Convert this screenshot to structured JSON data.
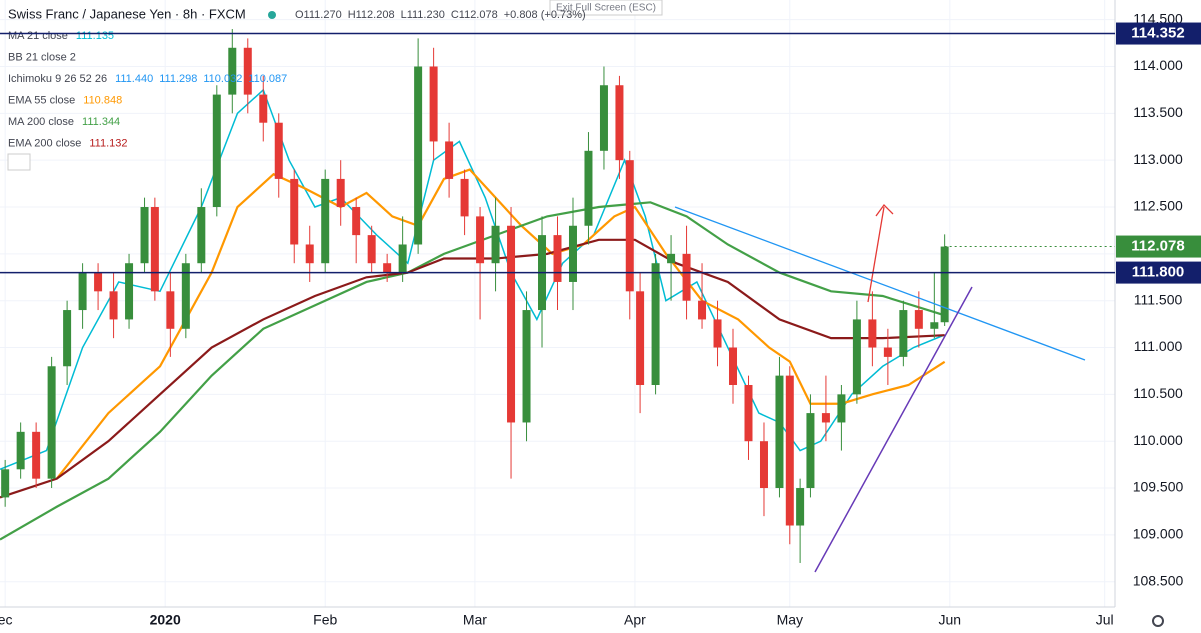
{
  "header": {
    "symbol": "Swiss Franc / Japanese Yen · 8h · FXCM",
    "ohlc": [
      "O111.270",
      "H112.208",
      "L111.230",
      "C112.078",
      "+0.808 (+0.73%)"
    ],
    "exit_fullscreen": "Exit Full Screen (ESC)"
  },
  "indicators": [
    {
      "name": "MA 21 close",
      "values": [
        "111.135"
      ],
      "color": "#00bcd4"
    },
    {
      "name": "BB 21 close 2",
      "values": []
    },
    {
      "name": "Ichimoku 9 26 52 26",
      "values": [
        "111.440",
        "111.298",
        "110.032",
        "110.087"
      ],
      "color": "#2196f3"
    },
    {
      "name": "EMA 55 close",
      "values": [
        "110.848"
      ],
      "color": "#ff9800"
    },
    {
      "name": "MA 200 close",
      "values": [
        "111.344"
      ],
      "color": "#43a047"
    },
    {
      "name": "EMA 200 close",
      "values": [
        "111.132"
      ],
      "color": "#b71c1c"
    }
  ],
  "chart_data": {
    "type": "candlestick",
    "xlim": [
      -1,
      215
    ],
    "xticks": [
      {
        "value": 0,
        "label": "ec"
      },
      {
        "value": 31,
        "label": "2020"
      },
      {
        "value": 62,
        "label": "Feb"
      },
      {
        "value": 91,
        "label": "Mar"
      },
      {
        "value": 122,
        "label": "Apr"
      },
      {
        "value": 152,
        "label": "May"
      },
      {
        "value": 183,
        "label": "Jun"
      },
      {
        "value": 213,
        "label": "Jul"
      }
    ],
    "ylim": [
      108.23,
      114.71
    ],
    "yticks": [
      {
        "value": 108.5,
        "label": "108.500"
      },
      {
        "value": 109,
        "label": "109.000"
      },
      {
        "value": 109.5,
        "label": "109.500"
      },
      {
        "value": 110,
        "label": "110.000"
      },
      {
        "value": 110.5,
        "label": "110.500"
      },
      {
        "value": 111,
        "label": "111.000"
      },
      {
        "value": 111.5,
        "label": "111.500"
      },
      {
        "value": 112,
        "label": "112.000"
      },
      {
        "value": 112.5,
        "label": "112.500"
      },
      {
        "value": 113,
        "label": "113.000"
      },
      {
        "value": 113.5,
        "label": "113.500"
      },
      {
        "value": 114,
        "label": "114.000"
      },
      {
        "value": 114.5,
        "label": "114.500"
      }
    ],
    "up_color": "#388e3c",
    "down_color": "#e53935",
    "candles": [
      [
        0,
        109.4,
        109.8,
        109.3,
        109.7
      ],
      [
        3,
        109.7,
        110.2,
        109.6,
        110.1
      ],
      [
        6,
        110.1,
        110.2,
        109.5,
        109.6
      ],
      [
        9,
        109.6,
        110.9,
        109.5,
        110.8
      ],
      [
        12,
        110.8,
        111.5,
        110.6,
        111.4
      ],
      [
        15,
        111.4,
        111.9,
        111.2,
        111.8
      ],
      [
        18,
        111.8,
        111.9,
        111.4,
        111.6
      ],
      [
        21,
        111.6,
        111.8,
        111.1,
        111.3
      ],
      [
        24,
        111.3,
        112.0,
        111.2,
        111.9
      ],
      [
        27,
        111.9,
        112.6,
        111.8,
        112.5
      ],
      [
        29,
        112.5,
        112.6,
        111.5,
        111.6
      ],
      [
        32,
        111.6,
        111.8,
        110.9,
        111.2
      ],
      [
        35,
        111.2,
        112.0,
        111.1,
        111.9
      ],
      [
        38,
        111.9,
        112.7,
        111.8,
        112.5
      ],
      [
        41,
        112.5,
        113.8,
        112.4,
        113.7
      ],
      [
        44,
        113.7,
        114.4,
        113.5,
        114.2
      ],
      [
        47,
        114.2,
        114.3,
        113.5,
        113.7
      ],
      [
        50,
        113.7,
        113.9,
        113.2,
        113.4
      ],
      [
        53,
        113.4,
        113.5,
        112.6,
        112.8
      ],
      [
        56,
        112.8,
        112.9,
        111.9,
        112.1
      ],
      [
        59,
        112.1,
        112.3,
        111.7,
        111.9
      ],
      [
        62,
        111.9,
        112.9,
        111.8,
        112.8
      ],
      [
        65,
        112.8,
        113.0,
        112.3,
        112.5
      ],
      [
        68,
        112.5,
        112.6,
        111.9,
        112.2
      ],
      [
        71,
        112.2,
        112.3,
        111.8,
        111.9
      ],
      [
        74,
        111.9,
        112.0,
        111.7,
        111.8
      ],
      [
        77,
        111.8,
        112.4,
        111.7,
        112.1
      ],
      [
        80,
        112.1,
        114.3,
        112.0,
        114.0
      ],
      [
        83,
        114.0,
        114.2,
        113.0,
        113.2
      ],
      [
        86,
        113.2,
        113.4,
        112.6,
        112.8
      ],
      [
        89,
        112.8,
        112.9,
        112.2,
        112.4
      ],
      [
        92,
        112.4,
        112.5,
        111.3,
        111.9
      ],
      [
        95,
        111.9,
        112.6,
        111.6,
        112.3
      ],
      [
        98,
        112.3,
        112.5,
        109.6,
        110.2
      ],
      [
        101,
        110.2,
        111.6,
        110.0,
        111.4
      ],
      [
        104,
        111.4,
        112.4,
        111.0,
        112.2
      ],
      [
        107,
        112.2,
        112.4,
        111.4,
        111.7
      ],
      [
        110,
        111.7,
        112.6,
        111.4,
        112.3
      ],
      [
        113,
        112.3,
        113.3,
        112.1,
        113.1
      ],
      [
        116,
        113.1,
        114.0,
        112.9,
        113.8
      ],
      [
        119,
        113.8,
        113.9,
        112.8,
        113.0
      ],
      [
        121,
        113.0,
        113.1,
        111.3,
        111.6
      ],
      [
        123,
        111.6,
        111.8,
        110.3,
        110.6
      ],
      [
        126,
        110.6,
        112.0,
        110.5,
        111.9
      ],
      [
        129,
        111.9,
        112.2,
        111.5,
        112.0
      ],
      [
        132,
        112.0,
        112.3,
        111.3,
        111.5
      ],
      [
        135,
        111.5,
        111.9,
        111.2,
        111.3
      ],
      [
        138,
        111.3,
        111.5,
        110.8,
        111.0
      ],
      [
        141,
        111.0,
        111.2,
        110.4,
        110.6
      ],
      [
        144,
        110.6,
        110.7,
        109.8,
        110.0
      ],
      [
        147,
        110.0,
        110.2,
        109.2,
        109.5
      ],
      [
        150,
        109.5,
        110.9,
        109.4,
        110.7
      ],
      [
        152,
        110.7,
        110.8,
        108.9,
        109.1
      ],
      [
        154,
        109.1,
        109.6,
        108.7,
        109.5
      ],
      [
        156,
        109.5,
        110.5,
        109.4,
        110.3
      ],
      [
        159,
        110.3,
        110.7,
        110.0,
        110.2
      ],
      [
        162,
        110.2,
        110.6,
        109.9,
        110.5
      ],
      [
        165,
        110.5,
        111.5,
        110.4,
        111.3
      ],
      [
        168,
        111.3,
        111.6,
        110.8,
        111.0
      ],
      [
        171,
        111.0,
        111.2,
        110.6,
        110.9
      ],
      [
        174,
        110.9,
        111.5,
        110.8,
        111.4
      ],
      [
        177,
        111.4,
        111.6,
        111.0,
        111.2
      ],
      [
        180,
        111.2,
        111.8,
        111.1,
        111.27
      ],
      [
        182,
        111.27,
        112.208,
        111.23,
        112.078
      ]
    ],
    "lines": [
      {
        "color": "#00bcd4",
        "x": [
          -1,
          8,
          15,
          22,
          30,
          38,
          45,
          50,
          55,
          60,
          65,
          72,
          78,
          83,
          88,
          93,
          98,
          103,
          108,
          114,
          120,
          124,
          128,
          134,
          140,
          146,
          150,
          154,
          158,
          164,
          170,
          176,
          182
        ],
        "values": [
          109.7,
          109.9,
          111.0,
          111.7,
          111.6,
          112.5,
          113.5,
          113.75,
          113.0,
          112.5,
          112.6,
          112.2,
          111.9,
          113.0,
          113.2,
          112.6,
          111.8,
          111.3,
          111.9,
          112.2,
          113.0,
          112.4,
          111.5,
          111.7,
          111.0,
          110.3,
          110.2,
          109.9,
          110.0,
          110.5,
          110.8,
          111.0,
          111.135
        ]
      },
      {
        "color": "#ff9800",
        "x": [
          10,
          20,
          30,
          35,
          40,
          45,
          52,
          58,
          65,
          70,
          75,
          80,
          85,
          90,
          95,
          100,
          106,
          112,
          118,
          122,
          128,
          135,
          142,
          148,
          152,
          156,
          162,
          168,
          175,
          182
        ],
        "values": [
          109.6,
          110.3,
          110.8,
          111.3,
          111.8,
          112.5,
          112.85,
          112.7,
          112.5,
          112.65,
          112.4,
          112.3,
          112.8,
          112.9,
          112.6,
          112.3,
          112.0,
          112.1,
          112.4,
          112.5,
          112.0,
          111.5,
          111.3,
          111.0,
          110.85,
          110.4,
          110.4,
          110.5,
          110.6,
          110.848
        ]
      },
      {
        "color": "#43a047",
        "x": [
          -1,
          10,
          20,
          30,
          40,
          50,
          60,
          70,
          78,
          85,
          95,
          105,
          115,
          125,
          132,
          140,
          150,
          160,
          170,
          182
        ],
        "values": [
          108.95,
          109.3,
          109.6,
          110.1,
          110.7,
          111.2,
          111.45,
          111.7,
          111.8,
          112.0,
          112.2,
          112.4,
          112.5,
          112.55,
          112.4,
          112.1,
          111.8,
          111.6,
          111.55,
          111.344
        ]
      },
      {
        "color": "#8b1a1a",
        "x": [
          -1,
          10,
          20,
          30,
          40,
          50,
          60,
          70,
          78,
          85,
          95,
          105,
          115,
          122,
          130,
          140,
          150,
          160,
          170,
          182
        ],
        "values": [
          109.4,
          109.6,
          110.0,
          110.5,
          111.0,
          111.3,
          111.55,
          111.75,
          111.8,
          111.95,
          111.95,
          112.0,
          112.15,
          112.15,
          111.9,
          111.7,
          111.3,
          111.1,
          111.1,
          111.132
        ]
      }
    ],
    "hlines": [
      {
        "value": 114.352,
        "label": "114.352",
        "color": "#131f6b"
      },
      {
        "value": 111.8,
        "label": "111.800",
        "color": "#131f6b"
      }
    ],
    "last_price": {
      "value": 112.078,
      "label": "112.078",
      "color": "#388e3c"
    }
  }
}
